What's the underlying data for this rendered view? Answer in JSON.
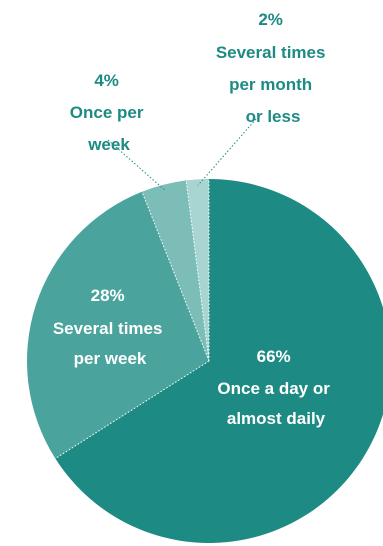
{
  "chart_data": {
    "type": "pie",
    "title": "",
    "start": "12 o'clock, clockwise",
    "slices": [
      {
        "label_pct": "66%",
        "label_lines": [
          "Once a day or",
          "almost daily"
        ],
        "value": 66,
        "color": "#1e8a84",
        "label_color": "#ffffff"
      },
      {
        "label_pct": "28%",
        "label_lines": [
          "Several times",
          "per week"
        ],
        "value": 28,
        "color": "#4aa39d",
        "label_color": "#ffffff"
      },
      {
        "label_pct": "4%",
        "label_lines": [
          "Once per",
          "week"
        ],
        "value": 4,
        "color": "#7dbdb8",
        "label_color": "#1e8a84"
      },
      {
        "label_pct": "2%",
        "label_lines": [
          "Several times",
          "per month",
          "or less"
        ],
        "value": 2,
        "color": "#a8d5d2",
        "label_color": "#1e8a84"
      }
    ]
  }
}
